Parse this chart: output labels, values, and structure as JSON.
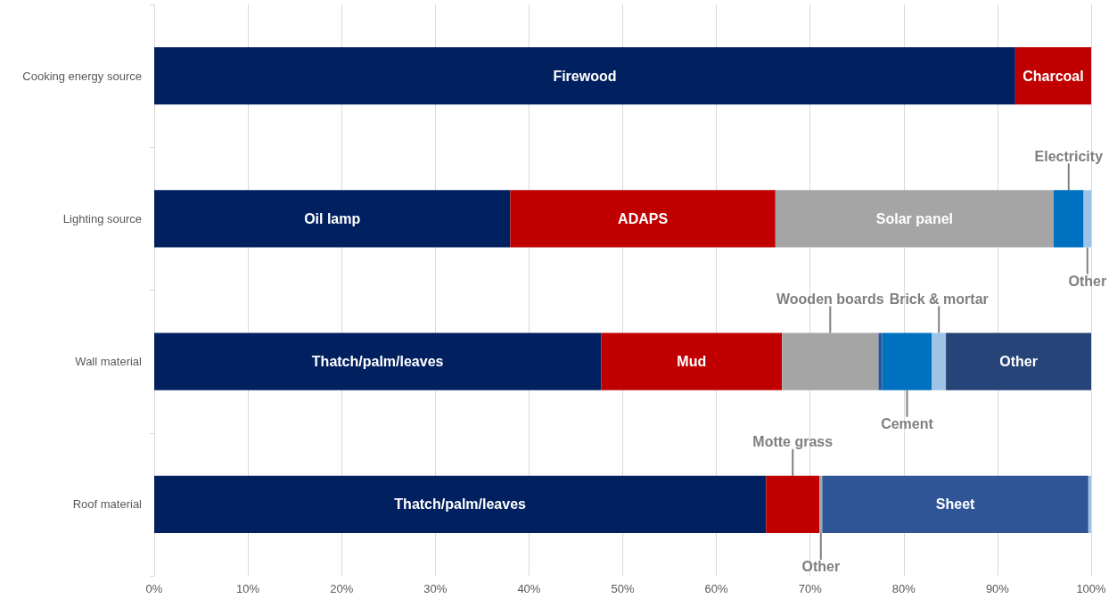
{
  "chart_data": {
    "type": "bar",
    "orientation": "horizontal",
    "stacked": true,
    "grid": "x",
    "categories": [
      "Cooking energy source",
      "Lighting source",
      "Wall material",
      "Roof material"
    ],
    "xlim": [
      0,
      100
    ],
    "xticks": [
      {
        "value": 0,
        "label": "0%"
      },
      {
        "value": 10,
        "label": "10%"
      },
      {
        "value": 20,
        "label": "20%"
      },
      {
        "value": 30,
        "label": "30%"
      },
      {
        "value": 40,
        "label": "40%"
      },
      {
        "value": 50,
        "label": "50%"
      },
      {
        "value": 60,
        "label": "60%"
      },
      {
        "value": 70,
        "label": "70%"
      },
      {
        "value": 80,
        "label": "80%"
      },
      {
        "value": 90,
        "label": "90%"
      },
      {
        "value": 100,
        "label": "100%"
      }
    ],
    "series": [
      {
        "name": "Firewood",
        "color": "#002060",
        "values": [
          91.9,
          null,
          null,
          null
        ]
      },
      {
        "name": "Charcoal",
        "color": "#c00000",
        "values": [
          8.1,
          null,
          null,
          null
        ]
      },
      {
        "name": "Oil lamp",
        "color": "#002060",
        "values": [
          null,
          38,
          null,
          null
        ]
      },
      {
        "name": "ADAPS",
        "color": "#c00000",
        "values": [
          null,
          28.3,
          null,
          null
        ]
      },
      {
        "name": "Solar panel",
        "color": "#a5a5a5",
        "values": [
          null,
          29.7,
          null,
          null
        ]
      },
      {
        "name": "Electricity",
        "color": "#0070c0",
        "values": [
          null,
          3.2,
          null,
          null
        ]
      },
      {
        "name": "Other",
        "color": "#9dc3e6",
        "values": [
          null,
          0.8,
          null,
          null
        ]
      },
      {
        "name": "Thatch/palm/leaves",
        "color": "#002060",
        "values": [
          null,
          null,
          47.7,
          null
        ]
      },
      {
        "name": "Mud",
        "color": "#c00000",
        "values": [
          null,
          null,
          19.3,
          null
        ]
      },
      {
        "name": "Wooden boards",
        "color": "#a5a5a5",
        "values": [
          null,
          null,
          10.3,
          null
        ]
      },
      {
        "color": "#2e5597",
        "values": [
          null,
          null,
          0.4,
          null
        ]
      },
      {
        "name": "Cement",
        "color": "#0070c0",
        "values": [
          null,
          null,
          5.3,
          null
        ]
      },
      {
        "name": "Brick & mortar",
        "color": "#9dc3e6",
        "values": [
          null,
          null,
          1.5,
          null
        ]
      },
      {
        "name": "Other",
        "color": "#264478",
        "values": [
          null,
          null,
          15.5,
          null
        ]
      },
      {
        "name": "Thatch/palm/leaves",
        "color": "#002060",
        "values": [
          null,
          null,
          null,
          65.3
        ]
      },
      {
        "name": "Motte grass",
        "color": "#c00000",
        "values": [
          null,
          null,
          null,
          5.7
        ]
      },
      {
        "name": "Other",
        "color": "#a5a5a5",
        "values": [
          null,
          null,
          null,
          0.3
        ]
      },
      {
        "name": "Sheet",
        "color": "#2f5597",
        "values": [
          null,
          null,
          null,
          28.4
        ]
      },
      {
        "color": "#9dc3e6",
        "values": [
          null,
          null,
          null,
          0.3
        ]
      }
    ]
  }
}
